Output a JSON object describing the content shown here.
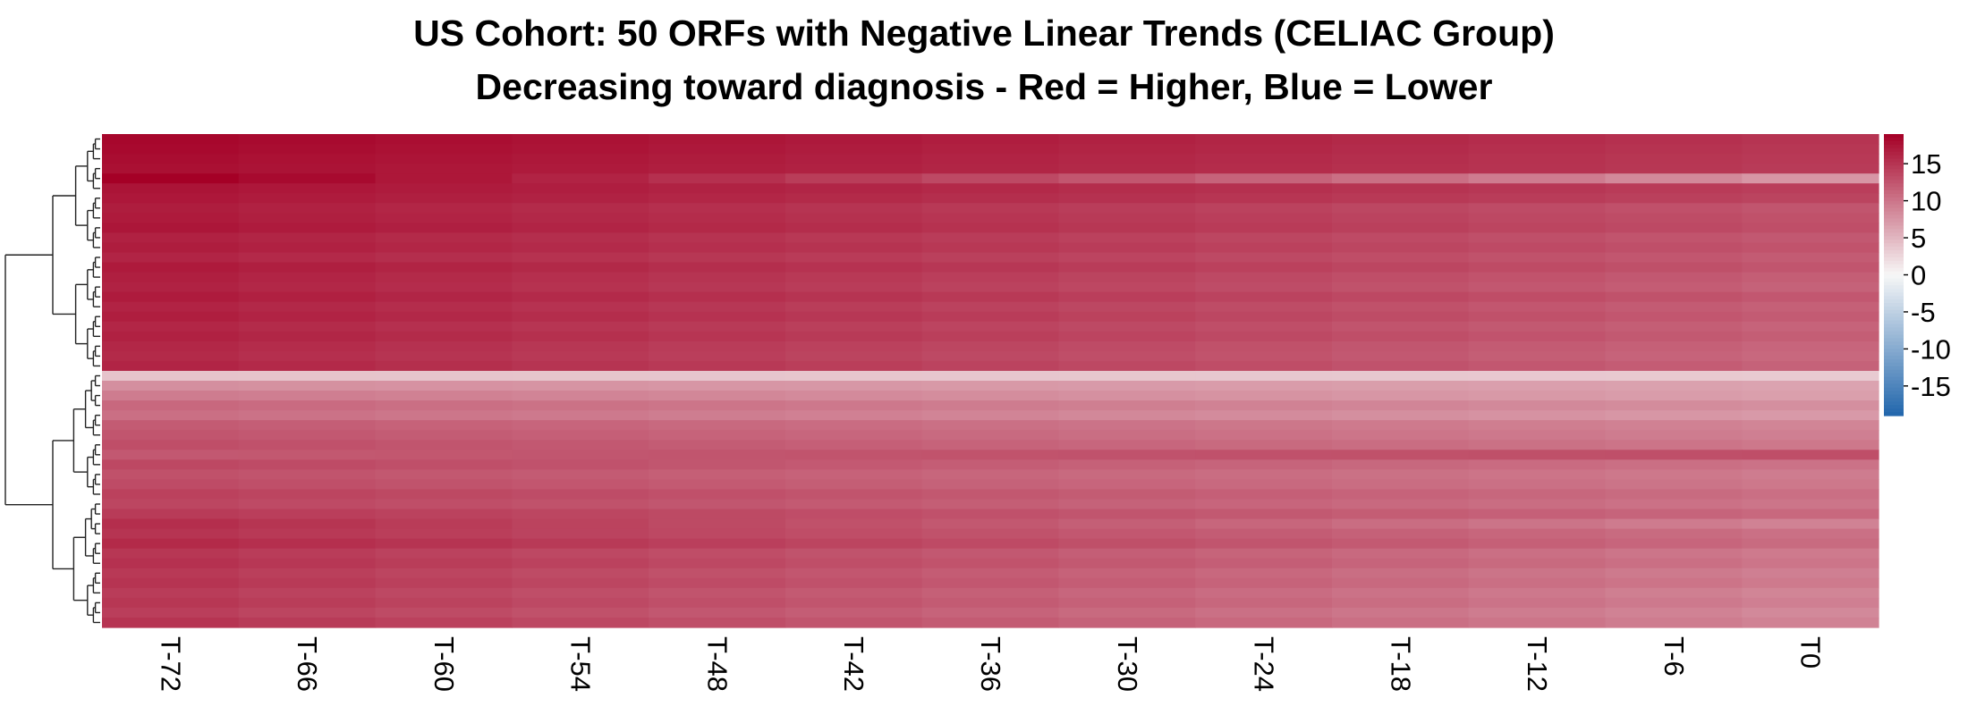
{
  "chart_data": {
    "type": "heatmap",
    "title": "US Cohort: 50 ORFs with Negative Linear Trends (CELIAC Group)",
    "subtitle": "Decreasing toward diagnosis - Red = Higher, Blue = Lower",
    "columns": [
      "T-72",
      "T-66",
      "T-60",
      "T-54",
      "T-48",
      "T-42",
      "T-36",
      "T-30",
      "T-24",
      "T-18",
      "T-12",
      "T-6",
      "T0"
    ],
    "row_count": 50,
    "row_start_values": [
      18.5,
      18.3,
      18.0,
      17.8,
      19.2,
      17.5,
      17.2,
      16.8,
      17.0,
      17.3,
      16.5,
      16.8,
      16.2,
      17.0,
      16.6,
      16.4,
      16.9,
      16.3,
      16.7,
      16.1,
      16.5,
      16.0,
      15.8,
      16.2,
      4.0,
      8.0,
      9.5,
      11.0,
      10.5,
      12.0,
      12.5,
      13.0,
      12.2,
      13.5,
      12.8,
      13.2,
      14.0,
      13.6,
      14.5,
      15.5,
      15.0,
      15.8,
      14.8,
      15.2,
      14.6,
      15.0,
      14.4,
      14.8,
      14.2,
      15.0
    ],
    "row_end_values": [
      15.0,
      14.8,
      14.6,
      14.5,
      7.5,
      14.2,
      13.8,
      12.5,
      12.8,
      13.0,
      12.2,
      12.6,
      12.0,
      12.5,
      11.8,
      11.5,
      12.3,
      11.6,
      12.0,
      11.4,
      11.8,
      11.2,
      11.0,
      11.5,
      3.5,
      6.5,
      6.8,
      8.0,
      7.2,
      8.8,
      9.2,
      9.8,
      13.0,
      10.2,
      9.5,
      9.8,
      10.5,
      10.0,
      11.0,
      9.0,
      10.4,
      10.8,
      9.6,
      10.0,
      9.2,
      9.6,
      8.8,
      9.2,
      8.5,
      9.0
    ],
    "colorbar": {
      "min": -19,
      "max": 19,
      "ticks": [
        "15",
        "10",
        "5",
        "0",
        "-5",
        "-10",
        "-15"
      ],
      "tick_values": [
        15,
        10,
        5,
        0,
        -5,
        -10,
        -15
      ]
    },
    "colors": {
      "high": "#a50026",
      "mid": "#f7f7f7",
      "low": "#2166ac"
    },
    "dendrogram": "rows-clustered",
    "legend": "right"
  }
}
